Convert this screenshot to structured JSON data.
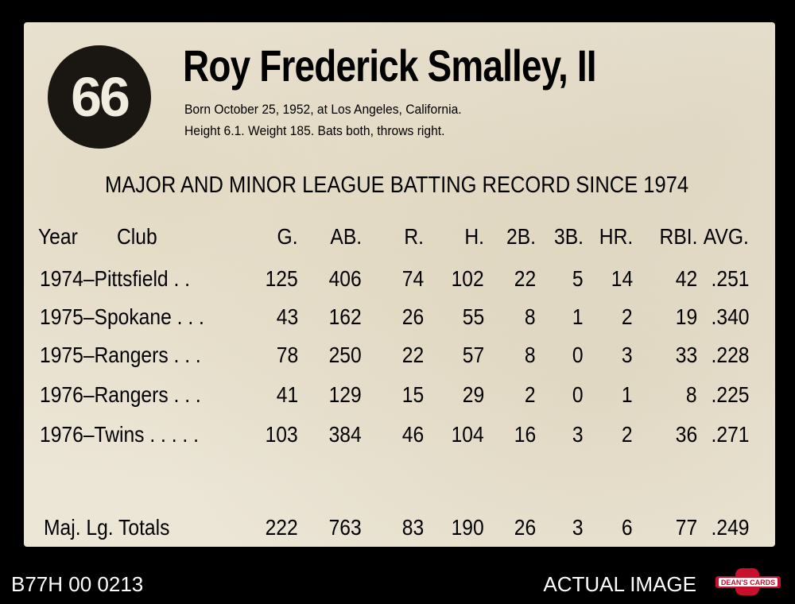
{
  "card": {
    "number": "66",
    "name": "Roy Frederick Smalley, II",
    "bio_line1": "Born October 25, 1952, at Los Angeles, California.",
    "bio_line2": "Height 6.1. Weight 185. Bats both, throws right.",
    "record_title": "MAJOR AND MINOR LEAGUE BATTING RECORD SINCE 1974",
    "headers": {
      "year": "Year",
      "club": "Club",
      "g": "G.",
      "ab": "AB.",
      "r": "R.",
      "h": "H.",
      "b2": "2B.",
      "b3": "3B.",
      "hr": "HR.",
      "rbi": "RBI.",
      "avg": "AVG."
    },
    "rows": [
      {
        "team": "1974–Pittsfield . .",
        "g": "125",
        "ab": "406",
        "r": "74",
        "h": "102",
        "b2": "22",
        "b3": "5",
        "hr": "14",
        "rbi": "42",
        "avg": ".251"
      },
      {
        "team": "1975–Spokane . . .",
        "g": "43",
        "ab": "162",
        "r": "26",
        "h": "55",
        "b2": "8",
        "b3": "1",
        "hr": "2",
        "rbi": "19",
        "avg": ".340"
      },
      {
        "team": "1975–Rangers . . .",
        "g": "78",
        "ab": "250",
        "r": "22",
        "h": "57",
        "b2": "8",
        "b3": "0",
        "hr": "3",
        "rbi": "33",
        "avg": ".228"
      },
      {
        "team": "1976–Rangers . . .",
        "g": "41",
        "ab": "129",
        "r": "15",
        "h": "29",
        "b2": "2",
        "b3": "0",
        "hr": "1",
        "rbi": "8",
        "avg": ".225"
      },
      {
        "team": "1976–Twins . . . . .",
        "g": "103",
        "ab": "384",
        "r": "46",
        "h": "104",
        "b2": "16",
        "b3": "3",
        "hr": "2",
        "rbi": "36",
        "avg": ".271"
      }
    ],
    "totals": {
      "label": "Maj. Lg. Totals",
      "g": "222",
      "ab": "763",
      "r": "83",
      "h": "190",
      "b2": "26",
      "b3": "3",
      "hr": "6",
      "rbi": "77",
      "avg": ".249"
    }
  },
  "footer": {
    "catalog_id": "B77H 00 0213",
    "actual_label": "ACTUAL IMAGE",
    "logo_text": "DEAN'S CARDS"
  },
  "colors": {
    "card_background": "#ece6d7",
    "ink": "#1c1812",
    "logo_red": "#c8102e"
  }
}
